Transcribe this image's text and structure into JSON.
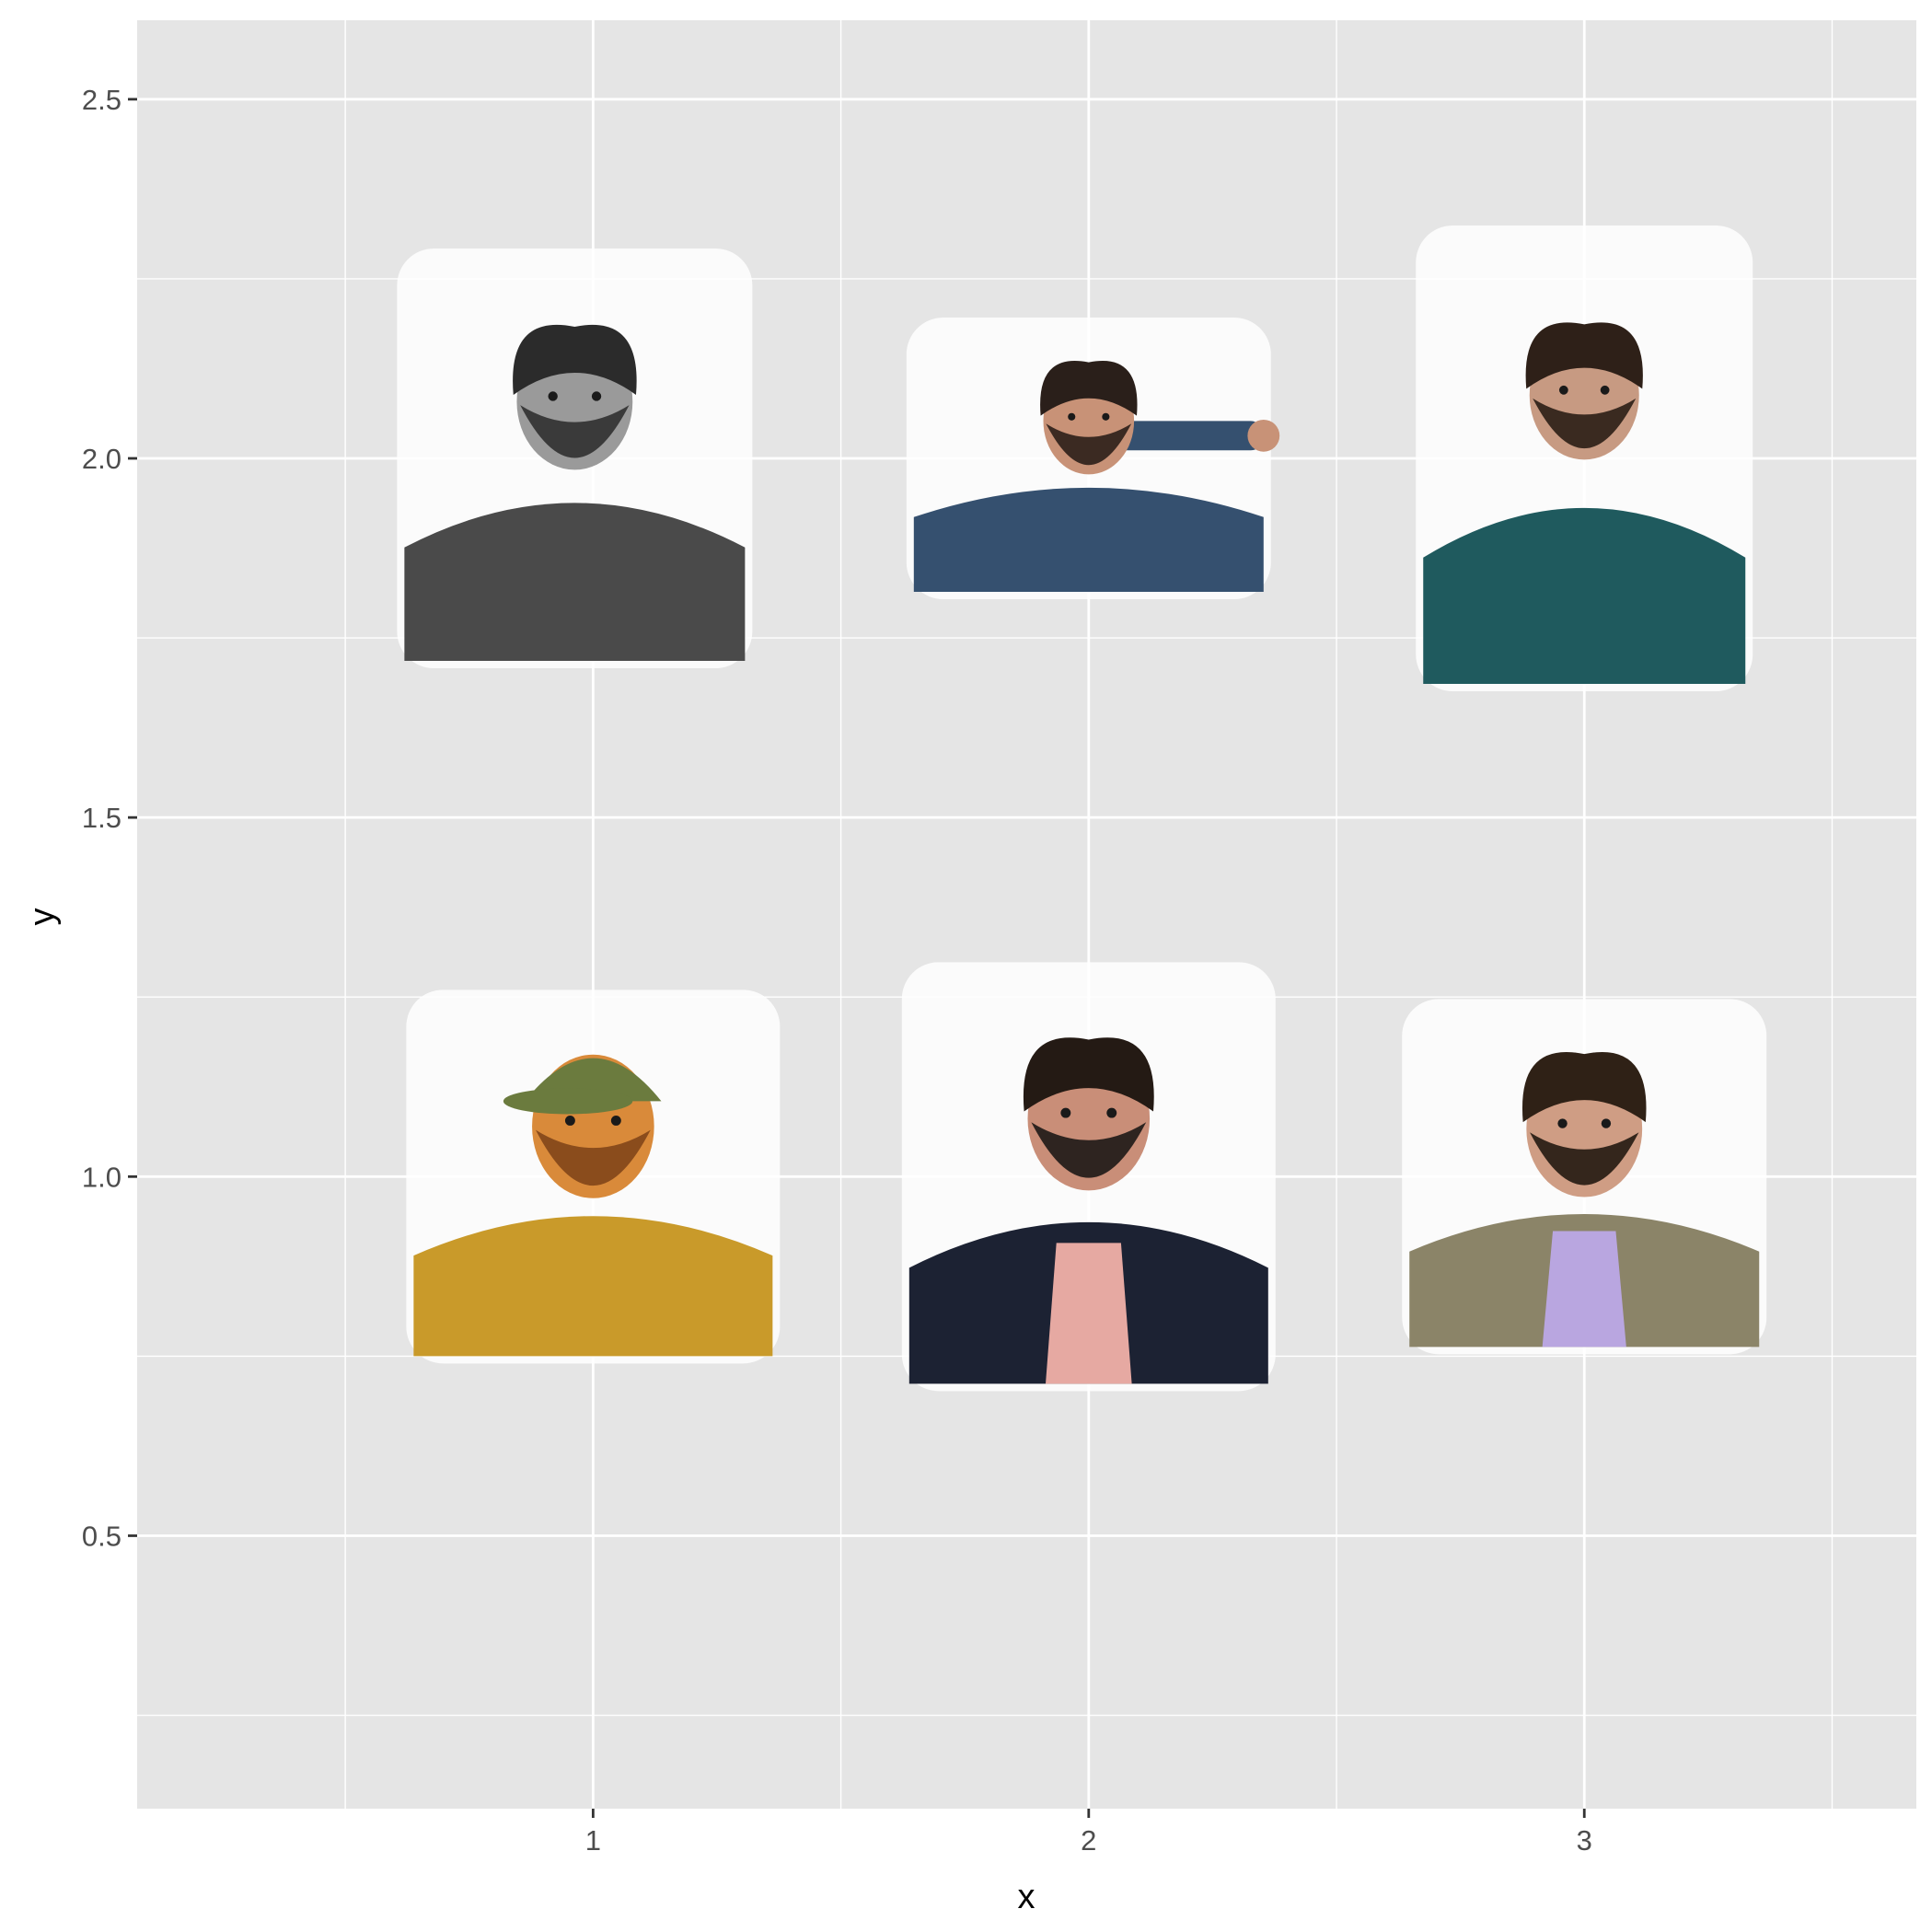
{
  "chart_data": {
    "type": "scatter",
    "title": "",
    "xlabel": "x",
    "ylabel": "y",
    "xlim": [
      0.08,
      3.67
    ],
    "ylim": [
      0.12,
      2.61
    ],
    "x_ticks": [
      1,
      2,
      3
    ],
    "x_tick_labels": [
      "1",
      "2",
      "3"
    ],
    "y_ticks": [
      0.5,
      1.0,
      1.5,
      2.0,
      2.5
    ],
    "y_tick_labels": [
      "0.5",
      "1.0",
      "1.5",
      "2.0",
      "2.5"
    ],
    "x_minor_grid": [
      0.5,
      1.5,
      2.5,
      3.5
    ],
    "y_minor_grid": [
      0.25,
      0.75,
      1.25,
      1.75,
      2.25
    ],
    "grid": true,
    "background": "#E5E5E5",
    "grid_color": "#FFFFFF",
    "marker": "portrait-photo",
    "points": [
      {
        "x": 1,
        "y": 2,
        "style": "grayscale-hoodie"
      },
      {
        "x": 2,
        "y": 2,
        "style": "pointing-blue-shirt"
      },
      {
        "x": 3,
        "y": 2,
        "style": "arms-crossed-teal"
      },
      {
        "x": 1,
        "y": 1,
        "style": "green-cap-sunlit"
      },
      {
        "x": 2,
        "y": 1,
        "style": "navy-blazer"
      },
      {
        "x": 3,
        "y": 1,
        "style": "tan-blazer-lanyard"
      }
    ]
  }
}
